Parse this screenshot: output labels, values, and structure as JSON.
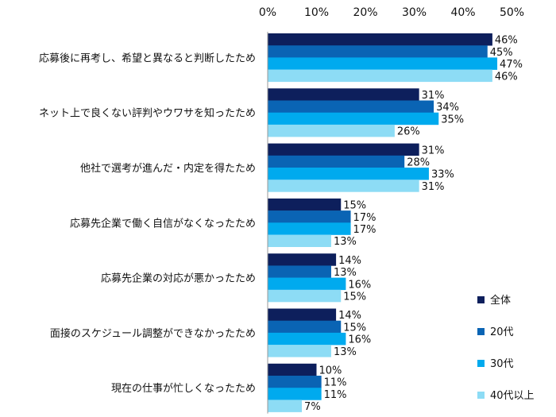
{
  "chart_data": {
    "type": "bar",
    "orientation": "horizontal",
    "categories": [
      "応募後に再考し、希望と異なると判断したため",
      "ネット上で良くない評判やウワサを知ったため",
      "他社で選考が進んだ・内定を得たため",
      "応募先企業で働く自信がなくなったため",
      "応募先企業の対応が悪かったため",
      "面接のスケジュール調整ができなかったため",
      "現在の仕事が忙しくなったため"
    ],
    "series": [
      {
        "name": "全体",
        "color": "#0d1f5c",
        "values": [
          46,
          31,
          31,
          15,
          14,
          14,
          10
        ]
      },
      {
        "name": "20代",
        "color": "#0a64b4",
        "values": [
          45,
          34,
          28,
          17,
          13,
          15,
          11
        ]
      },
      {
        "name": "30代",
        "color": "#00aaee",
        "values": [
          47,
          35,
          33,
          17,
          16,
          16,
          11
        ]
      },
      {
        "name": "40代以上",
        "color": "#8ddcf5",
        "values": [
          46,
          26,
          31,
          13,
          15,
          13,
          7
        ]
      }
    ],
    "value_suffix": "%",
    "xlim": [
      0,
      50
    ],
    "xticks": [
      0,
      10,
      20,
      30,
      40,
      50
    ],
    "xtick_labels": [
      "0%",
      "10%",
      "20%",
      "30%",
      "40%",
      "50%"
    ],
    "axis_position": "top",
    "grid": false,
    "legend_position": "bottom-right"
  }
}
